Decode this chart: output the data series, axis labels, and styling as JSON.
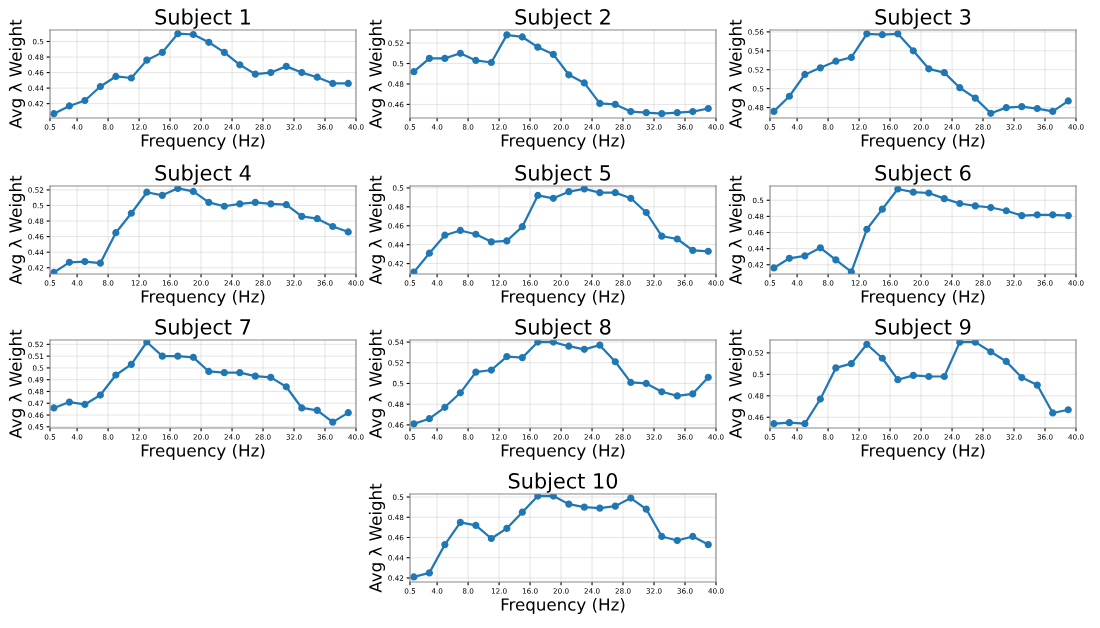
{
  "chart_data": [
    {
      "type": "line",
      "title": "Subject 1",
      "xlabel": "Frequency (Hz)",
      "ylabel": "Avg λ Weight",
      "grid": true,
      "marker": "circle",
      "x": [
        1,
        3,
        5,
        7,
        9,
        11,
        13,
        15,
        17,
        19,
        21,
        23,
        25,
        27,
        29,
        31,
        33,
        35,
        37,
        39
      ],
      "xlim": [
        0.5,
        40
      ],
      "xticks": [
        {
          "value": 0.5,
          "label": "0.5"
        },
        {
          "value": 4,
          "label": "4.0"
        },
        {
          "value": 8,
          "label": "8.0"
        },
        {
          "value": 12,
          "label": "12.0"
        },
        {
          "value": 16,
          "label": "16.0"
        },
        {
          "value": 20,
          "label": "20.0"
        },
        {
          "value": 24,
          "label": "24.0"
        },
        {
          "value": 28,
          "label": "28.0"
        },
        {
          "value": 32,
          "label": "32.0"
        },
        {
          "value": 36,
          "label": "36.0"
        },
        {
          "value": 40,
          "label": "40.0"
        }
      ],
      "ylim": [
        0.4015,
        0.5148
      ],
      "yticks": [
        0.42,
        0.44,
        0.46,
        0.48,
        0.5
      ],
      "series": [
        {
          "color": "#1f77b4",
          "values": [
            0.407,
            0.417,
            0.424,
            0.442,
            0.455,
            0.453,
            0.476,
            0.486,
            0.51,
            0.509,
            0.499,
            0.486,
            0.47,
            0.458,
            0.46,
            0.468,
            0.46,
            0.454,
            0.446,
            0.446
          ]
        }
      ]
    },
    {
      "type": "line",
      "title": "Subject 2",
      "xlabel": "Frequency (Hz)",
      "ylabel": "Avg λ Weight",
      "grid": true,
      "marker": "circle",
      "x": [
        1,
        3,
        5,
        7,
        9,
        11,
        13,
        15,
        17,
        19,
        21,
        23,
        25,
        27,
        29,
        31,
        33,
        35,
        37,
        39
      ],
      "xlim": [
        0.5,
        40
      ],
      "xticks": [
        {
          "value": 0.5,
          "label": "0.5"
        },
        {
          "value": 4,
          "label": "4.0"
        },
        {
          "value": 8,
          "label": "8.0"
        },
        {
          "value": 12,
          "label": "12.0"
        },
        {
          "value": 16,
          "label": "16.0"
        },
        {
          "value": 20,
          "label": "20.0"
        },
        {
          "value": 24,
          "label": "24.0"
        },
        {
          "value": 28,
          "label": "28.0"
        },
        {
          "value": 32,
          "label": "32.0"
        },
        {
          "value": 36,
          "label": "36.0"
        },
        {
          "value": 40,
          "label": "40.0"
        }
      ],
      "ylim": [
        0.4467,
        0.5328
      ],
      "yticks": [
        0.46,
        0.48,
        0.5,
        0.52
      ],
      "series": [
        {
          "color": "#1f77b4",
          "values": [
            0.492,
            0.505,
            0.505,
            0.51,
            0.503,
            0.501,
            0.528,
            0.526,
            0.516,
            0.509,
            0.489,
            0.481,
            0.461,
            0.46,
            0.453,
            0.452,
            0.451,
            0.452,
            0.453,
            0.456
          ]
        }
      ]
    },
    {
      "type": "line",
      "title": "Subject 3",
      "xlabel": "Frequency (Hz)",
      "ylabel": "Avg λ Weight",
      "grid": true,
      "marker": "circle",
      "x": [
        1,
        3,
        5,
        7,
        9,
        11,
        13,
        15,
        17,
        19,
        21,
        23,
        25,
        27,
        29,
        31,
        33,
        35,
        37,
        39
      ],
      "xlim": [
        0.5,
        40
      ],
      "xticks": [
        {
          "value": 0.5,
          "label": "0.5"
        },
        {
          "value": 4,
          "label": "4.0"
        },
        {
          "value": 8,
          "label": "8.0"
        },
        {
          "value": 12,
          "label": "12.0"
        },
        {
          "value": 16,
          "label": "16.0"
        },
        {
          "value": 20,
          "label": "20.0"
        },
        {
          "value": 24,
          "label": "24.0"
        },
        {
          "value": 28,
          "label": "28.0"
        },
        {
          "value": 32,
          "label": "32.0"
        },
        {
          "value": 36,
          "label": "36.0"
        },
        {
          "value": 40,
          "label": "40.0"
        }
      ],
      "ylim": [
        0.469,
        0.562
      ],
      "yticks": [
        0.48,
        0.5,
        0.52,
        0.54,
        0.56
      ],
      "series": [
        {
          "color": "#1f77b4",
          "values": [
            0.476,
            0.492,
            0.515,
            0.522,
            0.529,
            0.533,
            0.558,
            0.557,
            0.558,
            0.54,
            0.521,
            0.517,
            0.501,
            0.49,
            0.474,
            0.48,
            0.481,
            0.479,
            0.476,
            0.487
          ]
        }
      ]
    },
    {
      "type": "line",
      "title": "Subject 4",
      "xlabel": "Frequency (Hz)",
      "ylabel": "Avg λ Weight",
      "grid": true,
      "marker": "circle",
      "x": [
        1,
        3,
        5,
        7,
        9,
        11,
        13,
        15,
        17,
        19,
        21,
        23,
        25,
        27,
        29,
        31,
        33,
        35,
        37,
        39
      ],
      "xlim": [
        0.5,
        40
      ],
      "xticks": [
        {
          "value": 0.5,
          "label": "0.5"
        },
        {
          "value": 4,
          "label": "4.0"
        },
        {
          "value": 8,
          "label": "8.0"
        },
        {
          "value": 12,
          "label": "12.0"
        },
        {
          "value": 16,
          "label": "16.0"
        },
        {
          "value": 20,
          "label": "20.0"
        },
        {
          "value": 24,
          "label": "24.0"
        },
        {
          "value": 28,
          "label": "28.0"
        },
        {
          "value": 32,
          "label": "32.0"
        },
        {
          "value": 36,
          "label": "36.0"
        },
        {
          "value": 40,
          "label": "40.0"
        }
      ],
      "ylim": [
        0.412,
        0.525
      ],
      "yticks": [
        0.42,
        0.44,
        0.46,
        0.48,
        0.5,
        0.52
      ],
      "series": [
        {
          "color": "#1f77b4",
          "values": [
            0.414,
            0.427,
            0.428,
            0.426,
            0.465,
            0.49,
            0.517,
            0.513,
            0.522,
            0.518,
            0.504,
            0.499,
            0.502,
            0.504,
            0.502,
            0.501,
            0.486,
            0.483,
            0.473,
            0.466
          ]
        }
      ]
    },
    {
      "type": "line",
      "title": "Subject 5",
      "xlabel": "Frequency (Hz)",
      "ylabel": "Avg λ Weight",
      "grid": true,
      "marker": "circle",
      "x": [
        1,
        3,
        5,
        7,
        9,
        11,
        13,
        15,
        17,
        19,
        21,
        23,
        25,
        27,
        29,
        31,
        33,
        35,
        37,
        39
      ],
      "xlim": [
        0.5,
        40
      ],
      "xticks": [
        {
          "value": 0.5,
          "label": "0.5"
        },
        {
          "value": 4,
          "label": "4.0"
        },
        {
          "value": 8,
          "label": "8.0"
        },
        {
          "value": 12,
          "label": "12.0"
        },
        {
          "value": 16,
          "label": "16.0"
        },
        {
          "value": 20,
          "label": "20.0"
        },
        {
          "value": 24,
          "label": "24.0"
        },
        {
          "value": 28,
          "label": "28.0"
        },
        {
          "value": 32,
          "label": "32.0"
        },
        {
          "value": 36,
          "label": "36.0"
        },
        {
          "value": 40,
          "label": "40.0"
        }
      ],
      "ylim": [
        0.409,
        0.502
      ],
      "yticks": [
        0.42,
        0.44,
        0.46,
        0.48,
        0.5
      ],
      "series": [
        {
          "color": "#1f77b4",
          "values": [
            0.411,
            0.431,
            0.45,
            0.455,
            0.451,
            0.443,
            0.444,
            0.459,
            0.492,
            0.489,
            0.496,
            0.499,
            0.495,
            0.495,
            0.489,
            0.474,
            0.449,
            0.446,
            0.434,
            0.433
          ]
        }
      ]
    },
    {
      "type": "line",
      "title": "Subject 6",
      "xlabel": "Frequency (Hz)",
      "ylabel": "Avg λ Weight",
      "grid": true,
      "marker": "circle",
      "x": [
        1,
        3,
        5,
        7,
        9,
        11,
        13,
        15,
        17,
        19,
        21,
        23,
        25,
        27,
        29,
        31,
        33,
        35,
        37,
        39
      ],
      "xlim": [
        0.5,
        40
      ],
      "xticks": [
        {
          "value": 0.5,
          "label": "0.5"
        },
        {
          "value": 4,
          "label": "4.0"
        },
        {
          "value": 8,
          "label": "8.0"
        },
        {
          "value": 12,
          "label": "12.0"
        },
        {
          "value": 16,
          "label": "16.0"
        },
        {
          "value": 20,
          "label": "20.0"
        },
        {
          "value": 24,
          "label": "24.0"
        },
        {
          "value": 28,
          "label": "28.0"
        },
        {
          "value": 32,
          "label": "32.0"
        },
        {
          "value": 36,
          "label": "36.0"
        },
        {
          "value": 40,
          "label": "40.0"
        }
      ],
      "ylim": [
        0.4085,
        0.5177
      ],
      "yticks": [
        0.42,
        0.44,
        0.46,
        0.48,
        0.5
      ],
      "series": [
        {
          "color": "#1f77b4",
          "values": [
            0.416,
            0.428,
            0.431,
            0.441,
            0.426,
            0.411,
            0.464,
            0.489,
            0.514,
            0.51,
            0.509,
            0.502,
            0.496,
            0.493,
            0.491,
            0.487,
            0.481,
            0.482,
            0.482,
            0.481
          ]
        }
      ]
    },
    {
      "type": "line",
      "title": "Subject 7",
      "xlabel": "Frequency (Hz)",
      "ylabel": "Avg λ Weight",
      "grid": true,
      "marker": "circle",
      "x": [
        1,
        3,
        5,
        7,
        9,
        11,
        13,
        15,
        17,
        19,
        21,
        23,
        25,
        27,
        29,
        31,
        33,
        35,
        37,
        39
      ],
      "xlim": [
        0.5,
        40
      ],
      "xticks": [
        {
          "value": 0.5,
          "label": "0.5"
        },
        {
          "value": 4,
          "label": "4.0"
        },
        {
          "value": 8,
          "label": "8.0"
        },
        {
          "value": 12,
          "label": "12.0"
        },
        {
          "value": 16,
          "label": "16.0"
        },
        {
          "value": 20,
          "label": "20.0"
        },
        {
          "value": 24,
          "label": "24.0"
        },
        {
          "value": 28,
          "label": "28.0"
        },
        {
          "value": 32,
          "label": "32.0"
        },
        {
          "value": 36,
          "label": "36.0"
        },
        {
          "value": 40,
          "label": "40.0"
        }
      ],
      "ylim": [
        0.449,
        0.5237
      ],
      "yticks": [
        0.45,
        0.46,
        0.47,
        0.48,
        0.49,
        0.5,
        0.51,
        0.52
      ],
      "series": [
        {
          "color": "#1f77b4",
          "values": [
            0.466,
            0.471,
            0.469,
            0.477,
            0.494,
            0.503,
            0.522,
            0.51,
            0.51,
            0.509,
            0.497,
            0.496,
            0.496,
            0.493,
            0.492,
            0.484,
            0.466,
            0.464,
            0.454,
            0.462
          ]
        }
      ]
    },
    {
      "type": "line",
      "title": "Subject 8",
      "xlabel": "Frequency (Hz)",
      "ylabel": "Avg λ Weight",
      "grid": true,
      "marker": "circle",
      "x": [
        1,
        3,
        5,
        7,
        9,
        11,
        13,
        15,
        17,
        19,
        21,
        23,
        25,
        27,
        29,
        31,
        33,
        35,
        37,
        39
      ],
      "xlim": [
        0.5,
        40
      ],
      "xticks": [
        {
          "value": 0.5,
          "label": "0.5"
        },
        {
          "value": 4,
          "label": "4.0"
        },
        {
          "value": 8,
          "label": "8.0"
        },
        {
          "value": 12,
          "label": "12.0"
        },
        {
          "value": 16,
          "label": "16.0"
        },
        {
          "value": 20,
          "label": "20.0"
        },
        {
          "value": 24,
          "label": "24.0"
        },
        {
          "value": 28,
          "label": "28.0"
        },
        {
          "value": 32,
          "label": "32.0"
        },
        {
          "value": 36,
          "label": "36.0"
        },
        {
          "value": 40,
          "label": "40.0"
        }
      ],
      "ylim": [
        0.457,
        0.542
      ],
      "yticks": [
        0.46,
        0.48,
        0.5,
        0.52,
        0.54
      ],
      "series": [
        {
          "color": "#1f77b4",
          "values": [
            0.461,
            0.466,
            0.477,
            0.491,
            0.511,
            0.513,
            0.526,
            0.525,
            0.54,
            0.54,
            0.536,
            0.533,
            0.537,
            0.521,
            0.501,
            0.5,
            0.492,
            0.488,
            0.49,
            0.506
          ]
        }
      ]
    },
    {
      "type": "line",
      "title": "Subject 9",
      "xlabel": "Frequency (Hz)",
      "ylabel": "Avg λ Weight",
      "grid": true,
      "marker": "circle",
      "x": [
        1,
        3,
        5,
        7,
        9,
        11,
        13,
        15,
        17,
        19,
        21,
        23,
        25,
        27,
        29,
        31,
        33,
        35,
        37,
        39
      ],
      "xlim": [
        0.5,
        40
      ],
      "xticks": [
        {
          "value": 0.5,
          "label": "0.5"
        },
        {
          "value": 4,
          "label": "4.0"
        },
        {
          "value": 8,
          "label": "8.0"
        },
        {
          "value": 12,
          "label": "12.0"
        },
        {
          "value": 16,
          "label": "16.0"
        },
        {
          "value": 20,
          "label": "20.0"
        },
        {
          "value": 24,
          "label": "24.0"
        },
        {
          "value": 28,
          "label": "28.0"
        },
        {
          "value": 32,
          "label": "32.0"
        },
        {
          "value": 36,
          "label": "36.0"
        },
        {
          "value": 40,
          "label": "40.0"
        }
      ],
      "ylim": [
        0.45,
        0.532
      ],
      "yticks": [
        0.46,
        0.48,
        0.5,
        0.52
      ],
      "series": [
        {
          "color": "#1f77b4",
          "values": [
            0.454,
            0.455,
            0.454,
            0.477,
            0.506,
            0.51,
            0.528,
            0.515,
            0.495,
            0.499,
            0.498,
            0.498,
            0.53,
            0.53,
            0.521,
            0.512,
            0.497,
            0.49,
            0.464,
            0.467
          ]
        }
      ]
    },
    {
      "type": "line",
      "title": "Subject 10",
      "xlabel": "Frequency (Hz)",
      "ylabel": "Avg λ Weight",
      "grid": true,
      "marker": "circle",
      "x": [
        1,
        3,
        5,
        7,
        9,
        11,
        13,
        15,
        17,
        19,
        21,
        23,
        25,
        27,
        29,
        31,
        33,
        35,
        37,
        39
      ],
      "xlim": [
        0.5,
        40
      ],
      "xticks": [
        {
          "value": 0.5,
          "label": "0.5"
        },
        {
          "value": 4,
          "label": "4.0"
        },
        {
          "value": 8,
          "label": "8.0"
        },
        {
          "value": 12,
          "label": "12.0"
        },
        {
          "value": 16,
          "label": "16.0"
        },
        {
          "value": 20,
          "label": "20.0"
        },
        {
          "value": 24,
          "label": "24.0"
        },
        {
          "value": 28,
          "label": "28.0"
        },
        {
          "value": 32,
          "label": "32.0"
        },
        {
          "value": 36,
          "label": "36.0"
        },
        {
          "value": 40,
          "label": "40.0"
        }
      ],
      "ylim": [
        0.416,
        0.503
      ],
      "yticks": [
        0.42,
        0.44,
        0.46,
        0.48,
        0.5
      ],
      "series": [
        {
          "color": "#1f77b4",
          "values": [
            0.421,
            0.425,
            0.453,
            0.475,
            0.472,
            0.459,
            0.469,
            0.485,
            0.501,
            0.501,
            0.493,
            0.49,
            0.489,
            0.491,
            0.499,
            0.488,
            0.461,
            0.457,
            0.461,
            0.453
          ]
        }
      ]
    }
  ]
}
